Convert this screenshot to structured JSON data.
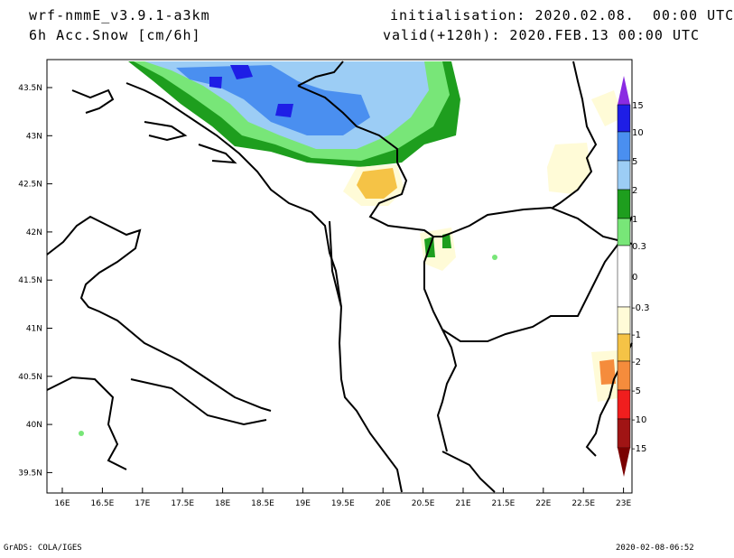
{
  "header": {
    "model": "wrf-nmmE_v3.9.1-a3km",
    "field": "6h Acc.Snow [cm/6h]",
    "init": "initialisation: 2020.02.08.  00:00 UTC",
    "valid": "valid(+120h): 2020.FEB.13 00:00 UTC"
  },
  "footer": {
    "left": "GrADS: COLA/IGES",
    "right": "2020-02-08-06:52"
  },
  "axes": {
    "lat_labels": [
      "43.5N",
      "43N",
      "42.5N",
      "42N",
      "41.5N",
      "41N",
      "40.5N",
      "40N",
      "39.5N"
    ],
    "lon_labels": [
      "16E",
      "16.5E",
      "17E",
      "17.5E",
      "18E",
      "18.5E",
      "19E",
      "19.5E",
      "20E",
      "20.5E",
      "21E",
      "21.5E",
      "22E",
      "22.5E",
      "23E"
    ]
  },
  "colorbar": {
    "labels": [
      "15",
      "10",
      "5",
      "2",
      "1",
      "0.3",
      "0",
      "-0.3",
      "-1",
      "-2",
      "-5",
      "-10",
      "-15"
    ],
    "colors": {
      "purple": "#8a2be2",
      "blue": "#1e1ee6",
      "mid_blue": "#4a8ff0",
      "light_blue": "#9ccdf5",
      "green": "#1e9e1e",
      "light_green": "#78e678",
      "pale_yellow": "#fffbd7",
      "orange_yellow": "#f5c346",
      "orange": "#f58c3c",
      "red": "#f01e1e",
      "dark_red": "#a01414"
    }
  }
}
